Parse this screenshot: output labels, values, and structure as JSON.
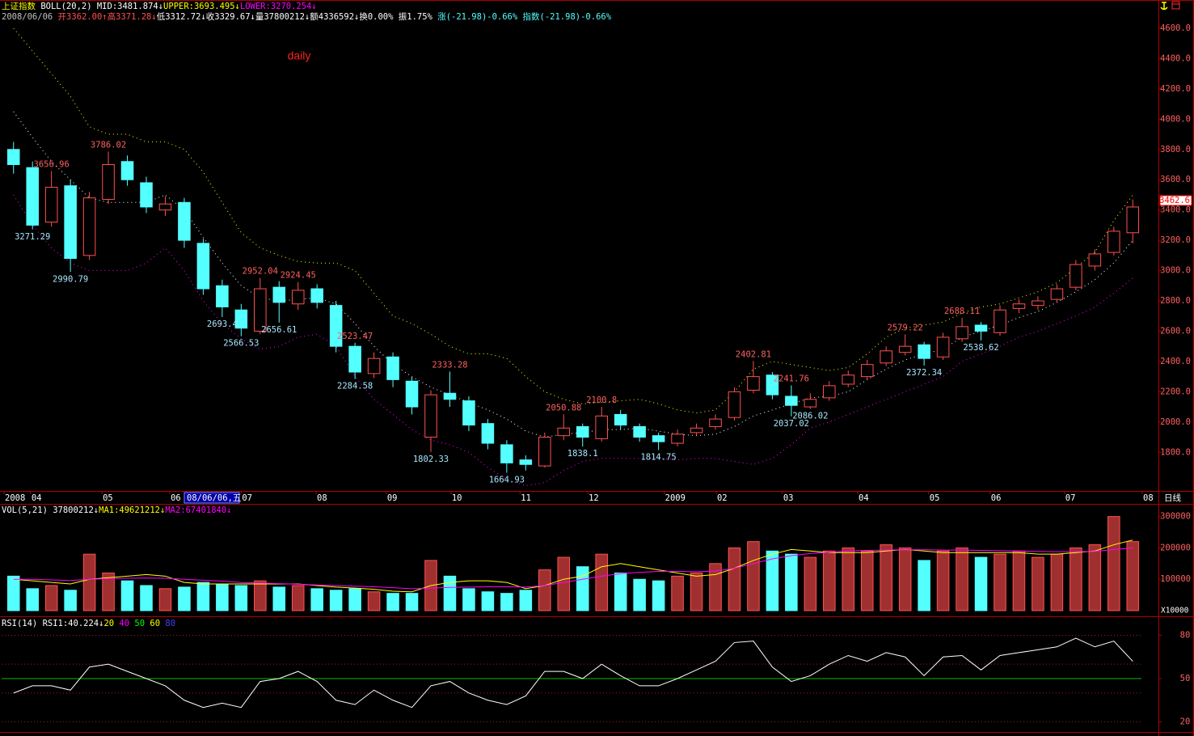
{
  "header": {
    "line1": [
      {
        "text": "上证指数",
        "color": "#ffff00"
      },
      {
        "text": " BOLL(20,2) ",
        "color": "#ffffff"
      },
      {
        "text": "MID:3481.874↓",
        "color": "#ffffff"
      },
      {
        "text": "UPPER:3693.495↓",
        "color": "#ffff00"
      },
      {
        "text": "LOWER:3270.254↓",
        "color": "#ff00ff"
      }
    ],
    "line2": [
      {
        "text": "2008/06/06 ",
        "color": "#c0c0c0"
      },
      {
        "text": "开3362.00↑",
        "color": "#ff5050"
      },
      {
        "text": "高3371.28↓",
        "color": "#ff5050"
      },
      {
        "text": "低3312.72↓",
        "color": "#ffffff"
      },
      {
        "text": "收3329.67↓",
        "color": "#ffffff"
      },
      {
        "text": "量37800212↓",
        "color": "#ffffff"
      },
      {
        "text": "额4336592↓",
        "color": "#ffffff"
      },
      {
        "text": "换0.00% 振1.75% ",
        "color": "#ffffff"
      },
      {
        "text": "涨(-21.98)-0.66% 指数(-21.98)-0.66%",
        "color": "#54ffff"
      }
    ]
  },
  "chart_data": [
    {
      "type": "candlestick",
      "title": "daily",
      "period_label": "日线",
      "cursor_label": "08/06/06,五",
      "open": [
        3800,
        3680,
        3320,
        3560,
        3100,
        3470,
        3720,
        3580,
        3400,
        3450,
        3180,
        2900,
        2740,
        2600,
        2890,
        2780,
        2880,
        2770,
        2500,
        2320,
        2430,
        2270,
        1900,
        2190,
        2140,
        1990,
        1850,
        1750,
        1710,
        1910,
        1970,
        1890,
        2050,
        1970,
        1910,
        1860,
        1930,
        1970,
        2030,
        2210,
        2310,
        2170,
        2100,
        2160,
        2250,
        2300,
        2390,
        2460,
        2510,
        2430,
        2550,
        2640,
        2590,
        2750,
        2770,
        2810,
        2890,
        3030,
        3120,
        3250
      ],
      "high": [
        3850,
        3720,
        3656.96,
        3600,
        3520,
        3786.02,
        3760,
        3620,
        3490,
        3480,
        3210,
        2940,
        2780,
        2952.04,
        2930,
        2924.45,
        2910,
        2800,
        2523.47,
        2460,
        2460,
        2300,
        2210,
        2333.28,
        2170,
        2020,
        1880,
        1780,
        1930,
        2050.88,
        1990,
        2100.8,
        2080,
        1990,
        1930,
        1950,
        1990,
        2050,
        2230,
        2402.81,
        2330,
        2241.76,
        2190,
        2270,
        2340,
        2410,
        2500,
        2579.22,
        2530,
        2590,
        2688.11,
        2660,
        2770,
        2810,
        2830,
        2910,
        3070,
        3140,
        3290,
        3470
      ],
      "low": [
        3640,
        3271.29,
        3290,
        2990.79,
        3070,
        3440,
        3560,
        3380,
        3360,
        3150,
        2840,
        2693.4,
        2566.53,
        2580,
        2656.61,
        2740,
        2750,
        2460,
        2284.58,
        2290,
        2230,
        2050,
        1802.33,
        2100,
        1940,
        1820,
        1664.93,
        1680,
        1700,
        1880,
        1838.1,
        1870,
        1950,
        1870,
        1814.75,
        1840,
        1910,
        1950,
        2010,
        2190,
        2150,
        2037.02,
        2086.02,
        2140,
        2230,
        2280,
        2370,
        2440,
        2372.34,
        2410,
        2530,
        2538.62,
        2570,
        2720,
        2740,
        2790,
        2870,
        3000,
        3100,
        3180
      ],
      "close": [
        3700,
        3300,
        3550,
        3080,
        3480,
        3700,
        3600,
        3420,
        3440,
        3200,
        2880,
        2760,
        2620,
        2880,
        2790,
        2870,
        2790,
        2500,
        2330,
        2420,
        2280,
        2100,
        2180,
        2150,
        1980,
        1860,
        1730,
        1720,
        1900,
        1960,
        1900,
        2040,
        1980,
        1900,
        1870,
        1920,
        1960,
        2020,
        2200,
        2300,
        2180,
        2110,
        2150,
        2240,
        2310,
        2380,
        2470,
        2500,
        2420,
        2560,
        2630,
        2600,
        2740,
        2780,
        2800,
        2880,
        3040,
        3110,
        3260,
        3420
      ],
      "upper": [
        4600,
        4450,
        4300,
        4150,
        3950,
        3900,
        3900,
        3850,
        3850,
        3800,
        3650,
        3450,
        3250,
        3150,
        3100,
        3060,
        3050,
        3050,
        3000,
        2850,
        2700,
        2650,
        2580,
        2500,
        2450,
        2450,
        2420,
        2300,
        2200,
        2150,
        2120,
        2130,
        2140,
        2150,
        2120,
        2080,
        2060,
        2080,
        2200,
        2350,
        2400,
        2380,
        2360,
        2340,
        2360,
        2450,
        2560,
        2620,
        2640,
        2660,
        2720,
        2760,
        2780,
        2820,
        2860,
        2920,
        3020,
        3120,
        3330,
        3500
      ],
      "mid": [
        4050,
        3880,
        3720,
        3600,
        3480,
        3450,
        3450,
        3450,
        3500,
        3400,
        3220,
        3050,
        2900,
        2820,
        2800,
        2810,
        2820,
        2780,
        2650,
        2500,
        2380,
        2300,
        2230,
        2180,
        2130,
        2080,
        2020,
        1940,
        1900,
        1920,
        1930,
        1950,
        1950,
        1960,
        1940,
        1920,
        1910,
        1920,
        1970,
        2040,
        2080,
        2120,
        2160,
        2170,
        2200,
        2280,
        2350,
        2410,
        2450,
        2480,
        2560,
        2600,
        2640,
        2690,
        2730,
        2790,
        2860,
        2940,
        3050,
        3200
      ],
      "lower": [
        3500,
        3300,
        3150,
        3050,
        3000,
        3000,
        3000,
        3050,
        3150,
        3000,
        2800,
        2650,
        2550,
        2480,
        2500,
        2560,
        2580,
        2500,
        2300,
        2150,
        2050,
        1950,
        1880,
        1850,
        1800,
        1700,
        1620,
        1580,
        1600,
        1680,
        1740,
        1760,
        1760,
        1760,
        1760,
        1750,
        1760,
        1760,
        1740,
        1720,
        1760,
        1850,
        1960,
        2000,
        2050,
        2100,
        2150,
        2200,
        2250,
        2300,
        2400,
        2450,
        2500,
        2560,
        2600,
        2650,
        2700,
        2760,
        2850,
        2950
      ],
      "labeled_highs": [
        2,
        5,
        13,
        15,
        18,
        23,
        29,
        31,
        39,
        41,
        47,
        50
      ],
      "labeled_lows": [
        1,
        3,
        11,
        12,
        14,
        18,
        22,
        26,
        30,
        34,
        41,
        42,
        48,
        51
      ],
      "up_color": "#ff5050",
      "down_color": "#54ffff",
      "high_label_color": "#ff6060",
      "low_label_color": "#a8e8ff",
      "upper_color": "#ffff00",
      "mid_color": "#ffffff",
      "lower_color": "#ff00ff",
      "price_tag": 3462.6,
      "xlim": [
        -0.5,
        59.5
      ],
      "xticks": [
        {
          "value": -0.5,
          "label": "2008"
        },
        {
          "value": 0.9,
          "label": "04"
        },
        {
          "value": 4.66,
          "label": "05"
        },
        {
          "value": 8.24,
          "label": "06"
        },
        {
          "value": 12.0,
          "label": "07"
        },
        {
          "value": 15.95,
          "label": "08"
        },
        {
          "value": 19.65,
          "label": "09"
        },
        {
          "value": 23.06,
          "label": "10"
        },
        {
          "value": 26.7,
          "label": "11"
        },
        {
          "value": 30.27,
          "label": "12"
        },
        {
          "value": 34.3,
          "label": "2009"
        },
        {
          "value": 37.04,
          "label": "02"
        },
        {
          "value": 40.53,
          "label": "03"
        },
        {
          "value": 44.5,
          "label": "04"
        },
        {
          "value": 48.24,
          "label": "05"
        },
        {
          "value": 51.48,
          "label": "06"
        },
        {
          "value": 55.4,
          "label": "07"
        },
        {
          "value": 59.5,
          "label": "08"
        }
      ],
      "ylim": [
        1545,
        4712
      ],
      "yticks": [
        {
          "value": 1800,
          "label": "1800.0"
        },
        {
          "value": 2000,
          "label": "2000.0"
        },
        {
          "value": 2200,
          "label": "2200.0"
        },
        {
          "value": 2400,
          "label": "2400.0"
        },
        {
          "value": 2600,
          "label": "2600.0"
        },
        {
          "value": 2800,
          "label": "2800.0"
        },
        {
          "value": 3000,
          "label": "3000.0"
        },
        {
          "value": 3200,
          "label": "3200.0"
        },
        {
          "value": 3400,
          "label": "3400.0"
        },
        {
          "value": 3600,
          "label": "3600.0"
        },
        {
          "value": 3800,
          "label": "3800.0"
        },
        {
          "value": 4000,
          "label": "4000.0"
        },
        {
          "value": 4200,
          "label": "4200.0"
        },
        {
          "value": 4400,
          "label": "4400.0"
        },
        {
          "value": 4600,
          "label": "4600.0"
        }
      ]
    },
    {
      "type": "volume",
      "header": [
        {
          "text": "VOL(5,21) ",
          "color": "#ffffff"
        },
        {
          "text": "37800212↓",
          "color": "#ffffff"
        },
        {
          "text": "MA1:49621212↓",
          "color": "#ffff00"
        },
        {
          "text": "MA2:67401840↓",
          "color": "#ff00ff"
        }
      ],
      "values": [
        110000,
        70000,
        80000,
        65000,
        180000,
        120000,
        95000,
        80000,
        70000,
        75000,
        90000,
        85000,
        80000,
        95000,
        75000,
        80000,
        70000,
        65000,
        70000,
        60000,
        55000,
        55000,
        160000,
        110000,
        70000,
        60000,
        55000,
        65000,
        130000,
        170000,
        140000,
        180000,
        120000,
        100000,
        95000,
        110000,
        120000,
        150000,
        200000,
        220000,
        190000,
        180000,
        170000,
        190000,
        200000,
        190000,
        210000,
        200000,
        160000,
        190000,
        200000,
        170000,
        180000,
        190000,
        170000,
        180000,
        200000,
        210000,
        300000,
        220000
      ],
      "ma1": [
        100000,
        95000,
        90000,
        85000,
        100000,
        105000,
        110000,
        115000,
        110000,
        90000,
        85000,
        85000,
        85000,
        85000,
        85000,
        85000,
        80000,
        75000,
        72000,
        68000,
        62000,
        60000,
        80000,
        90000,
        95000,
        95000,
        90000,
        70000,
        80000,
        100000,
        110000,
        140000,
        150000,
        140000,
        130000,
        120000,
        110000,
        115000,
        135000,
        160000,
        180000,
        195000,
        190000,
        185000,
        185000,
        185000,
        190000,
        195000,
        190000,
        185000,
        185000,
        185000,
        185000,
        185000,
        180000,
        180000,
        185000,
        190000,
        210000,
        225000
      ],
      "ma2": [
        100000,
        100000,
        98000,
        96000,
        100000,
        102000,
        103000,
        104000,
        103000,
        100000,
        97000,
        94000,
        90000,
        88000,
        86000,
        84000,
        82000,
        80000,
        78000,
        76000,
        73000,
        70000,
        72000,
        74000,
        75000,
        76000,
        76000,
        75000,
        80000,
        90000,
        100000,
        110000,
        118000,
        122000,
        125000,
        125000,
        124000,
        126000,
        135000,
        150000,
        165000,
        175000,
        182000,
        186000,
        190000,
        192000,
        193000,
        194000,
        194000,
        193000,
        193000,
        192000,
        191000,
        190000,
        189000,
        188000,
        188000,
        189000,
        195000,
        200000
      ],
      "ma1_color": "#ffff00",
      "ma2_color": "#ff00ff",
      "up_fill": "#a03030",
      "unit_label": "X10000",
      "ylim": [
        0,
        330000
      ],
      "yticks": [
        100000,
        200000,
        300000
      ]
    },
    {
      "type": "rsi",
      "header": [
        {
          "text": "RSI(14) ",
          "color": "#ffffff"
        },
        {
          "text": "RSI1:40.224↓",
          "color": "#ffffff"
        }
      ],
      "levels": [
        {
          "value": 20,
          "color": "#ffff00",
          "line": "dotted"
        },
        {
          "value": 40,
          "color": "#ff00ff",
          "line": "dotted"
        },
        {
          "value": 50,
          "color": "#00ff00",
          "line": "solid"
        },
        {
          "value": 60,
          "color": "#ffff00",
          "line": "dotted"
        },
        {
          "value": 80,
          "color": "#4040ff",
          "line": "dotted"
        }
      ],
      "dotted_color": "#a02020",
      "solid_color": "#00c000",
      "line_color": "#ffffff",
      "values": [
        40,
        45,
        45,
        42,
        58,
        60,
        55,
        50,
        45,
        35,
        30,
        33,
        30,
        48,
        50,
        55,
        48,
        35,
        32,
        42,
        35,
        30,
        45,
        48,
        40,
        35,
        32,
        38,
        55,
        55,
        50,
        60,
        52,
        45,
        45,
        50,
        56,
        62,
        75,
        76,
        58,
        48,
        52,
        60,
        66,
        62,
        68,
        65,
        52,
        65,
        66,
        56,
        66,
        68,
        70,
        72,
        78,
        72,
        76,
        62
      ],
      "ylim": [
        13,
        91.5
      ],
      "yticks": [
        20,
        50,
        80
      ]
    }
  ]
}
